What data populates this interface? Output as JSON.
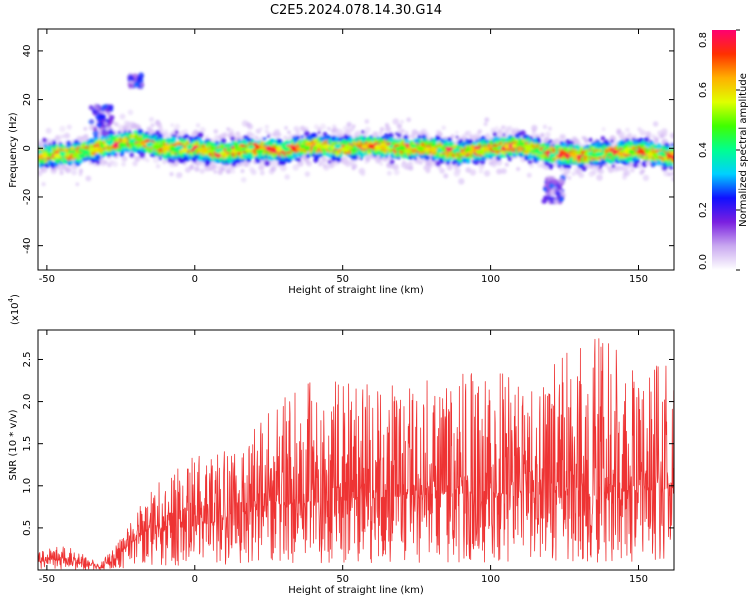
{
  "title": "C2E5.2024.078.14.30.G14",
  "chart_data": [
    {
      "type": "heatmap",
      "xlabel": "Height of straight line (km)",
      "ylabel": "Frequency (Hz)",
      "xlim": [
        -53,
        162
      ],
      "ylim": [
        -50,
        49
      ],
      "xticks": [
        -50,
        0,
        50,
        100,
        150
      ],
      "yticks": [
        -40,
        -20,
        0,
        20,
        40
      ],
      "grid": false,
      "colorbar": {
        "label": "Normalized spectral amplitude",
        "range": [
          0.0,
          0.8
        ],
        "ticks": [
          "0.0",
          "0.2",
          "0.4",
          "0.6",
          "0.8"
        ],
        "colormap": [
          "#ffffff",
          "#c9a8f0",
          "#7a1fe0",
          "#1010ff",
          "#00d0ff",
          "#00ff90",
          "#40ff00",
          "#e0ff00",
          "#ffb000",
          "#ff3000",
          "#ff0070"
        ]
      },
      "ridge_center_hz": [
        {
          "x": -50,
          "f": -3
        },
        {
          "x": -40,
          "f": -2
        },
        {
          "x": -30,
          "f": 1
        },
        {
          "x": -20,
          "f": 3
        },
        {
          "x": -10,
          "f": 0
        },
        {
          "x": 0,
          "f": 0
        },
        {
          "x": 10,
          "f": -2
        },
        {
          "x": 20,
          "f": 0
        },
        {
          "x": 30,
          "f": -1
        },
        {
          "x": 40,
          "f": 1
        },
        {
          "x": 50,
          "f": 0
        },
        {
          "x": 60,
          "f": 1
        },
        {
          "x": 70,
          "f": 0
        },
        {
          "x": 80,
          "f": 0
        },
        {
          "x": 90,
          "f": -2
        },
        {
          "x": 100,
          "f": 0
        },
        {
          "x": 110,
          "f": 1
        },
        {
          "x": 120,
          "f": -2
        },
        {
          "x": 130,
          "f": -3
        },
        {
          "x": 140,
          "f": -2
        },
        {
          "x": 150,
          "f": -1
        },
        {
          "x": 160,
          "f": -3
        }
      ],
      "band_halfwidth_hz": 6,
      "extra_features": [
        {
          "x_from": -35,
          "x_to": -28,
          "f_from": 6,
          "f_to": 18,
          "note": "upper lobe"
        },
        {
          "x_from": -22,
          "x_to": -18,
          "f_from": 25,
          "f_to": 30,
          "note": "faint patch"
        },
        {
          "x_from": 118,
          "x_to": 125,
          "f_from": -22,
          "f_to": -12,
          "note": "lower lobe"
        }
      ]
    },
    {
      "type": "line",
      "xlabel": "Height of straight line (km)",
      "ylabel": "SNR (10 * v/v)",
      "scale_label": "(x10",
      "scale_exp": "4",
      "scale_close": ")",
      "xlim": [
        -53,
        162
      ],
      "ylim": [
        0.0,
        2.85
      ],
      "xticks": [
        -50,
        0,
        50,
        100,
        150
      ],
      "yticks": [
        "0.5",
        "1.0",
        "1.5",
        "2.0",
        "2.5"
      ],
      "grid": false,
      "color": "#ee3333",
      "envelope": [
        {
          "x": -53,
          "base": 0.1,
          "peak": 0.22
        },
        {
          "x": -45,
          "base": 0.12,
          "peak": 0.3
        },
        {
          "x": -38,
          "base": 0.08,
          "peak": 0.2
        },
        {
          "x": -32,
          "base": 0.03,
          "peak": 0.08
        },
        {
          "x": -28,
          "base": 0.1,
          "peak": 0.25
        },
        {
          "x": -22,
          "base": 0.3,
          "peak": 0.6
        },
        {
          "x": -15,
          "base": 0.5,
          "peak": 0.95
        },
        {
          "x": -5,
          "base": 0.5,
          "peak": 1.3
        },
        {
          "x": 5,
          "base": 0.55,
          "peak": 1.4
        },
        {
          "x": 15,
          "base": 0.65,
          "peak": 1.5
        },
        {
          "x": 25,
          "base": 0.75,
          "peak": 1.9
        },
        {
          "x": 40,
          "base": 0.8,
          "peak": 2.3
        },
        {
          "x": 60,
          "base": 0.85,
          "peak": 2.2
        },
        {
          "x": 80,
          "base": 0.9,
          "peak": 2.3
        },
        {
          "x": 100,
          "base": 0.9,
          "peak": 2.35
        },
        {
          "x": 120,
          "base": 0.9,
          "peak": 2.45
        },
        {
          "x": 135,
          "base": 0.9,
          "peak": 2.8
        },
        {
          "x": 150,
          "base": 0.95,
          "peak": 2.5
        },
        {
          "x": 162,
          "base": 0.95,
          "peak": 2.4
        }
      ]
    }
  ]
}
